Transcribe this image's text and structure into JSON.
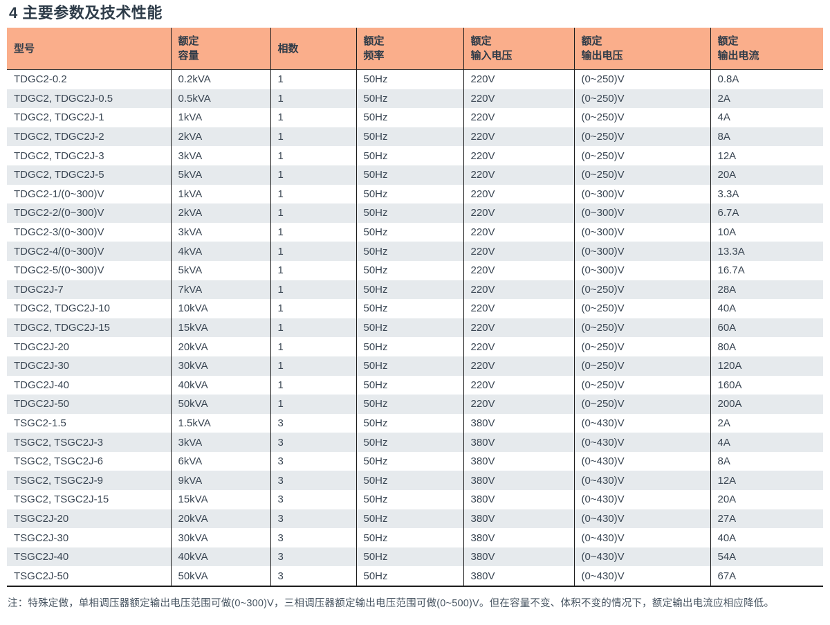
{
  "title": "4 主要参数及技术性能",
  "colors": {
    "header_bg": "#FAAE8B",
    "row_stripe": "#E6EAED",
    "table_border": "#1C1C1C",
    "title_text": "#2D3B48",
    "cell_text": "#3A4653",
    "note_text": "#475461"
  },
  "table": {
    "columns": [
      {
        "lines": [
          "型号"
        ]
      },
      {
        "lines": [
          "额定",
          "容量"
        ]
      },
      {
        "lines": [
          "相数"
        ]
      },
      {
        "lines": [
          "额定",
          "频率"
        ]
      },
      {
        "lines": [
          "额定",
          "输入电压"
        ]
      },
      {
        "lines": [
          "额定",
          "输出电压"
        ]
      },
      {
        "lines": [
          "额定",
          "输出电流"
        ]
      }
    ],
    "rows": [
      [
        "TDGC2-0.2",
        "0.2kVA",
        "1",
        "50Hz",
        "220V",
        "(0~250)V",
        "0.8A"
      ],
      [
        "TDGC2, TDGC2J-0.5",
        "0.5kVA",
        "1",
        "50Hz",
        "220V",
        "(0~250)V",
        "2A"
      ],
      [
        "TDGC2, TDGC2J-1",
        "1kVA",
        "1",
        "50Hz",
        "220V",
        "(0~250)V",
        "4A"
      ],
      [
        "TDGC2, TDGC2J-2",
        "2kVA",
        "1",
        "50Hz",
        "220V",
        "(0~250)V",
        "8A"
      ],
      [
        "TDGC2, TDGC2J-3",
        "3kVA",
        "1",
        "50Hz",
        "220V",
        "(0~250)V",
        "12A"
      ],
      [
        "TDGC2, TDGC2J-5",
        "5kVA",
        "1",
        "50Hz",
        "220V",
        "(0~250)V",
        "20A"
      ],
      [
        "TDGC2-1/(0~300)V",
        "1kVA",
        "1",
        "50Hz",
        "220V",
        "(0~300)V",
        "3.3A"
      ],
      [
        "TDGC2-2/(0~300)V",
        "2kVA",
        "1",
        "50Hz",
        "220V",
        "(0~300)V",
        "6.7A"
      ],
      [
        "TDGC2-3/(0~300)V",
        "3kVA",
        "1",
        "50Hz",
        "220V",
        "(0~300)V",
        "10A"
      ],
      [
        "TDGC2-4/(0~300)V",
        "4kVA",
        "1",
        "50Hz",
        "220V",
        "(0~300)V",
        "13.3A"
      ],
      [
        "TDGC2-5/(0~300)V",
        "5kVA",
        "1",
        "50Hz",
        "220V",
        "(0~300)V",
        "16.7A"
      ],
      [
        "TDGC2J-7",
        "7kVA",
        "1",
        "50Hz",
        "220V",
        "(0~250)V",
        "28A"
      ],
      [
        "TDGC2, TDGC2J-10",
        "10kVA",
        "1",
        "50Hz",
        "220V",
        "(0~250)V",
        "40A"
      ],
      [
        "TDGC2, TDGC2J-15",
        "15kVA",
        "1",
        "50Hz",
        "220V",
        "(0~250)V",
        "60A"
      ],
      [
        "TDGC2J-20",
        "20kVA",
        "1",
        "50Hz",
        "220V",
        "(0~250)V",
        "80A"
      ],
      [
        "TDGC2J-30",
        "30kVA",
        "1",
        "50Hz",
        "220V",
        "(0~250)V",
        "120A"
      ],
      [
        "TDGC2J-40",
        "40kVA",
        "1",
        "50Hz",
        "220V",
        "(0~250)V",
        "160A"
      ],
      [
        "TDGC2J-50",
        "50kVA",
        "1",
        "50Hz",
        "220V",
        "(0~250)V",
        "200A"
      ],
      [
        "TSGC2-1.5",
        "1.5kVA",
        "3",
        "50Hz",
        "380V",
        "(0~430)V",
        "2A"
      ],
      [
        "TSGC2, TSGC2J-3",
        "3kVA",
        "3",
        "50Hz",
        "380V",
        "(0~430)V",
        "4A"
      ],
      [
        "TSGC2, TSGC2J-6",
        "6kVA",
        "3",
        "50Hz",
        "380V",
        "(0~430)V",
        "8A"
      ],
      [
        "TSGC2, TSGC2J-9",
        "9kVA",
        "3",
        "50Hz",
        "380V",
        "(0~430)V",
        "12A"
      ],
      [
        "TSGC2, TSGC2J-15",
        "15kVA",
        "3",
        "50Hz",
        "380V",
        "(0~430)V",
        "20A"
      ],
      [
        "TSGC2J-20",
        "20kVA",
        "3",
        "50Hz",
        "380V",
        "(0~430)V",
        "27A"
      ],
      [
        "TSGC2J-30",
        "30kVA",
        "3",
        "50Hz",
        "380V",
        "(0~430)V",
        "40A"
      ],
      [
        "TSGC2J-40",
        "40kVA",
        "3",
        "50Hz",
        "380V",
        "(0~430)V",
        "54A"
      ],
      [
        "TSGC2J-50",
        "50kVA",
        "3",
        "50Hz",
        "380V",
        "(0~430)V",
        "67A"
      ]
    ]
  },
  "note": "注：特殊定做，单相调压器额定输出电压范围可做(0~300)V，三相调压器额定输出电压范围可做(0~500)V。但在容量不变、体积不变的情况下，额定输出电流应相应降低。"
}
